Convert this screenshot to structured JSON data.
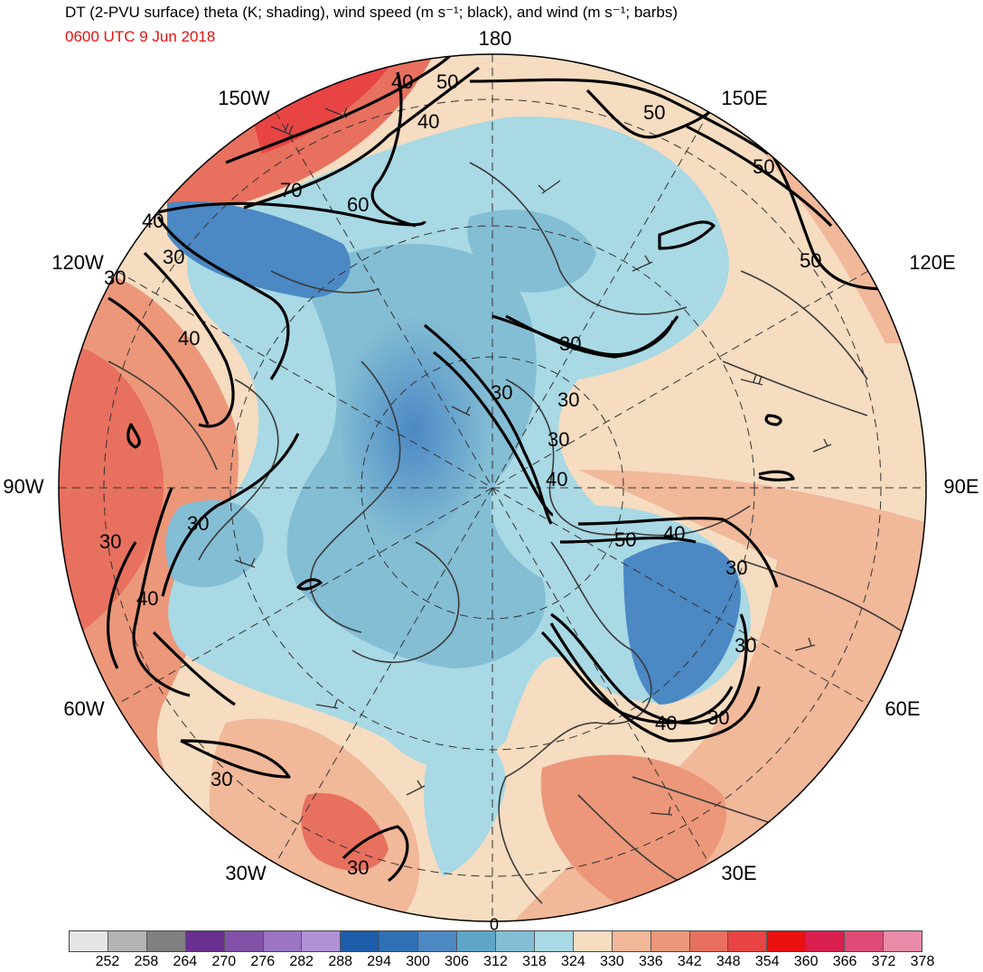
{
  "header": {
    "title": "DT (2-PVU surface) theta (K; shading), wind speed (m s⁻¹; black), and wind (m s⁻¹; barbs)",
    "valid_time": "0600 UTC 9 Jun 2018"
  },
  "longitude_labels": {
    "top": "180",
    "top_left": "150W",
    "top_right": "150E",
    "upper_left": "120W",
    "upper_right": "120E",
    "left": "90W",
    "right": "90E",
    "lower_left": "60W",
    "lower_right": "60E",
    "bottom_left": "30W",
    "bottom_right": "30E",
    "bottom": "0"
  },
  "contour_labels": [
    "40",
    "50",
    "40",
    "50",
    "70",
    "60",
    "50",
    "40",
    "30",
    "30",
    "50",
    "40",
    "30",
    "30",
    "30",
    "40",
    "50",
    "40",
    "30",
    "30",
    "40",
    "30",
    "30",
    "40",
    "30",
    "30",
    "30",
    "30"
  ],
  "colorbar": {
    "ticks": [
      "252",
      "258",
      "264",
      "270",
      "276",
      "282",
      "288",
      "294",
      "300",
      "306",
      "312",
      "318",
      "324",
      "330",
      "336",
      "342",
      "348",
      "354",
      "360",
      "366",
      "372",
      "378"
    ],
    "colors": [
      "#e6e6e6",
      "#b4b4b4",
      "#808080",
      "#6a2f90",
      "#8151a8",
      "#9b74c4",
      "#b090d4",
      "#1c5ca8",
      "#2e70b4",
      "#4b88c4",
      "#5ea6c8",
      "#84bed4",
      "#a8d9e4",
      "#f6dcc0",
      "#f1b899",
      "#ec977a",
      "#e8705e",
      "#e84444",
      "#e8110f",
      "#d81f4e",
      "#e04a76",
      "#e88aa8"
    ]
  }
}
